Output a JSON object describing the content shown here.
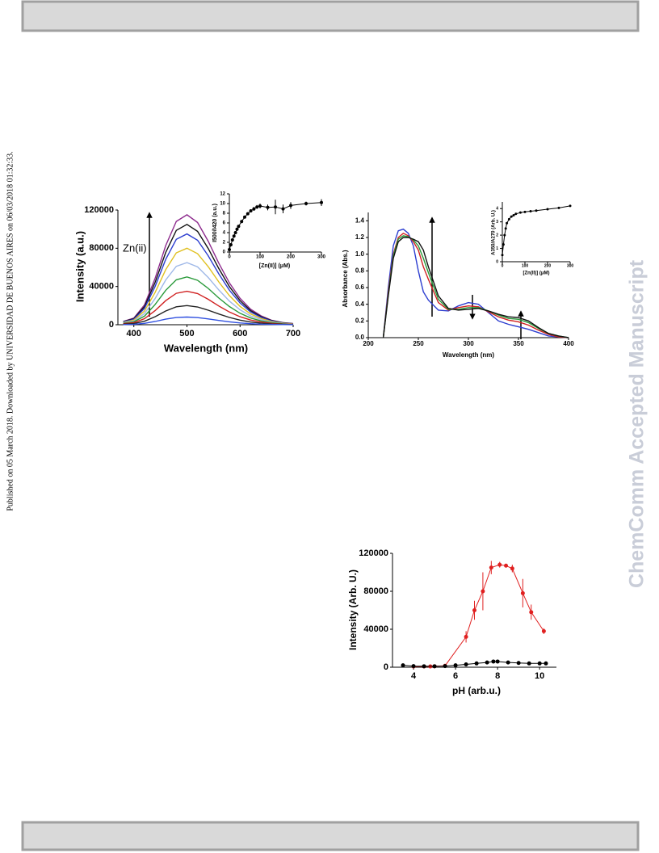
{
  "sidebar_left": "Published on 05 March 2018. Downloaded by UNIVERSIDAD DE BUENOS AIRES on 06/03/2018 01:32:33.",
  "sidebar_right": "ChemComm Accepted Manuscript",
  "chart_data": [
    {
      "type": "line",
      "xlabel": "Wavelength (nm)",
      "ylabel": "Intensity (a.u.)",
      "annotation": "Zn(ii)",
      "xlim": [
        370,
        700
      ],
      "ylim": [
        0,
        120000
      ],
      "xticks": [
        400,
        500,
        600,
        700
      ],
      "yticks": [
        0,
        40000,
        80000,
        120000
      ],
      "x": [
        380,
        400,
        420,
        440,
        460,
        480,
        500,
        520,
        540,
        560,
        580,
        600,
        620,
        640,
        660,
        680,
        700
      ],
      "series": [
        {
          "color": "#8e2c8e",
          "values": [
            3500,
            6900,
            20700,
            48300,
            82800,
            108100,
            115000,
            107000,
            87400,
            64400,
            43700,
            27600,
            16100,
            9200,
            4600,
            2300,
            1200
          ]
        },
        {
          "color": "#111111",
          "values": [
            3200,
            6300,
            18900,
            44100,
            75600,
            98700,
            105000,
            97700,
            79800,
            58800,
            39900,
            25200,
            14700,
            8400,
            4200,
            2100,
            1100
          ]
        },
        {
          "color": "#2d3ed0",
          "values": [
            2900,
            5700,
            17100,
            39900,
            68400,
            89300,
            95000,
            88400,
            72200,
            53200,
            36100,
            22800,
            13300,
            7600,
            3800,
            1900,
            1000
          ]
        },
        {
          "color": "#e0c020",
          "values": [
            2400,
            4800,
            14400,
            33600,
            57600,
            75200,
            80000,
            74400,
            60800,
            44800,
            30400,
            19200,
            11200,
            6400,
            3200,
            1600,
            800
          ]
        },
        {
          "color": "#9fb8e8",
          "values": [
            2000,
            3900,
            11700,
            27300,
            46800,
            61100,
            65000,
            60500,
            49400,
            36400,
            24700,
            15600,
            9100,
            5200,
            2600,
            1300,
            700
          ]
        },
        {
          "color": "#2a9a3a",
          "values": [
            1500,
            3000,
            9000,
            21000,
            36000,
            47000,
            50000,
            46500,
            38000,
            28000,
            19000,
            12000,
            7000,
            4000,
            2000,
            1000,
            500
          ]
        },
        {
          "color": "#d02020",
          "values": [
            1100,
            2100,
            6300,
            14700,
            25200,
            32900,
            35000,
            32600,
            26600,
            19600,
            13300,
            8400,
            4900,
            2800,
            1400,
            700,
            400
          ]
        },
        {
          "color": "#222222",
          "values": [
            600,
            1200,
            3600,
            8400,
            14400,
            18800,
            20000,
            18600,
            15200,
            11200,
            7600,
            4800,
            2800,
            1600,
            800,
            400,
            200
          ]
        },
        {
          "color": "#3050e0",
          "values": [
            200,
            500,
            1400,
            3400,
            5800,
            7500,
            8000,
            7400,
            6100,
            4500,
            3000,
            1900,
            1100,
            600,
            300,
            200,
            100
          ]
        }
      ]
    },
    {
      "type": "scatter",
      "xlabel": "[Zn(II)] (μM)",
      "ylabel": "I500/I420 (a.u.)",
      "xlim": [
        0,
        300
      ],
      "ylim": [
        0,
        12
      ],
      "xticks": [
        0,
        100,
        200,
        300
      ],
      "yticks": [
        0,
        2,
        4,
        6,
        8,
        10,
        12
      ],
      "fit_line": true,
      "x": [
        0,
        5,
        10,
        15,
        20,
        25,
        30,
        40,
        50,
        60,
        70,
        80,
        90,
        100,
        125,
        150,
        175,
        200,
        250,
        300
      ],
      "series": [
        {
          "color": "#000000",
          "values": [
            0.5,
            1.5,
            2.5,
            3.3,
            4,
            4.7,
            5.3,
            6.3,
            7.2,
            7.9,
            8.5,
            8.9,
            9.3,
            9.5,
            9.2,
            9.3,
            8.9,
            9.6,
            10,
            10.2
          ],
          "errors": [
            0.2,
            0.2,
            0.2,
            0.2,
            0.3,
            0.3,
            0.3,
            0.3,
            0.3,
            0.3,
            0.3,
            0.4,
            0.4,
            0.5,
            0.6,
            1.5,
            0.9,
            0.7,
            0.4,
            0.7
          ]
        }
      ]
    },
    {
      "type": "line",
      "xlabel": "Wavelength (nm)",
      "ylabel": "Absorbance (Abs.)",
      "xlim": [
        200,
        400
      ],
      "ylim": [
        0,
        1.5
      ],
      "xticks": [
        200,
        250,
        300,
        350,
        400
      ],
      "yticks": [
        {
          "value": 0,
          "label": "0.0"
        },
        0.2,
        0.4,
        0.6,
        0.8,
        {
          "value": 1,
          "label": "1.0"
        },
        1.2,
        1.4
      ],
      "x": [
        215,
        220,
        225,
        230,
        235,
        240,
        245,
        250,
        255,
        260,
        270,
        280,
        290,
        300,
        310,
        320,
        330,
        340,
        350,
        360,
        370,
        380,
        390,
        400
      ],
      "series": [
        {
          "color": "#2d3ed0",
          "values": [
            0,
            0.6,
            1.1,
            1.28,
            1.3,
            1.25,
            1.1,
            0.8,
            0.55,
            0.45,
            0.33,
            0.32,
            0.38,
            0.42,
            0.4,
            0.3,
            0.2,
            0.16,
            0.13,
            0.1,
            0.06,
            0.02,
            0.01,
            0
          ]
        },
        {
          "color": "#d02020",
          "values": [
            0,
            0.55,
            1.0,
            1.2,
            1.25,
            1.22,
            1.15,
            1.05,
            0.85,
            0.7,
            0.42,
            0.33,
            0.36,
            0.38,
            0.37,
            0.31,
            0.25,
            0.21,
            0.19,
            0.15,
            0.09,
            0.04,
            0.01,
            0
          ]
        },
        {
          "color": "#2a9a3a",
          "values": [
            0,
            0.52,
            0.98,
            1.18,
            1.22,
            1.21,
            1.17,
            1.1,
            0.95,
            0.78,
            0.46,
            0.34,
            0.34,
            0.36,
            0.36,
            0.32,
            0.27,
            0.23,
            0.22,
            0.18,
            0.11,
            0.05,
            0.02,
            0
          ]
        },
        {
          "color": "#111111",
          "values": [
            0,
            0.5,
            0.95,
            1.15,
            1.2,
            1.2,
            1.18,
            1.15,
            1.05,
            0.85,
            0.5,
            0.35,
            0.33,
            0.34,
            0.35,
            0.32,
            0.28,
            0.25,
            0.24,
            0.2,
            0.12,
            0.05,
            0.02,
            0
          ]
        }
      ]
    },
    {
      "type": "scatter",
      "xlabel": "[Zn(II)] (μM)",
      "ylabel": "A350/A270 (Arb. U.)",
      "xlim": [
        0,
        300
      ],
      "ylim": [
        0,
        4.5
      ],
      "xticks": [
        0,
        100,
        200,
        300
      ],
      "yticks": [
        0,
        1,
        2,
        3,
        4
      ],
      "fit_line": true,
      "x": [
        0,
        5,
        10,
        15,
        20,
        30,
        40,
        50,
        60,
        80,
        100,
        125,
        150,
        200,
        250,
        300
      ],
      "series": [
        {
          "color": "#000000",
          "values": [
            0.5,
            1.3,
            2,
            2.5,
            2.9,
            3.2,
            3.4,
            3.5,
            3.6,
            3.7,
            3.75,
            3.8,
            3.85,
            3.95,
            4.05,
            4.2
          ]
        }
      ]
    },
    {
      "type": "scatter",
      "xlabel": "pH (arb.u.)",
      "ylabel": "Intensity (Arb. U.)",
      "xlim": [
        3,
        10.8
      ],
      "ylim": [
        0,
        120000
      ],
      "xticks": [
        4,
        6,
        8,
        10
      ],
      "yticks": [
        0,
        40000,
        80000,
        120000
      ],
      "fit_line": true,
      "series": [
        {
          "color": "#e02020",
          "x": [
            4,
            4.5,
            4.8,
            5,
            5.5,
            6.5,
            6.9,
            7.3,
            7.7,
            8.1,
            8.4,
            8.7,
            9.2,
            9.6,
            10.2
          ],
          "values": [
            800,
            800,
            800,
            1000,
            1500,
            32000,
            60000,
            80000,
            105000,
            108000,
            107000,
            104000,
            78000,
            58000,
            38000
          ],
          "errors": [
            0,
            0,
            0,
            0,
            0,
            6000,
            10000,
            20000,
            7000,
            3000,
            2000,
            4000,
            15000,
            8000,
            3000
          ]
        },
        {
          "color": "#000000",
          "x": [
            3.5,
            4,
            4.5,
            5,
            5.5,
            6,
            6.5,
            7,
            7.5,
            7.8,
            8,
            8.5,
            9,
            9.5,
            10,
            10.3
          ],
          "values": [
            2000,
            1200,
            1000,
            1000,
            1200,
            2000,
            3000,
            4000,
            5000,
            6000,
            6000,
            5000,
            4500,
            4000,
            4000,
            4000
          ]
        }
      ]
    }
  ]
}
